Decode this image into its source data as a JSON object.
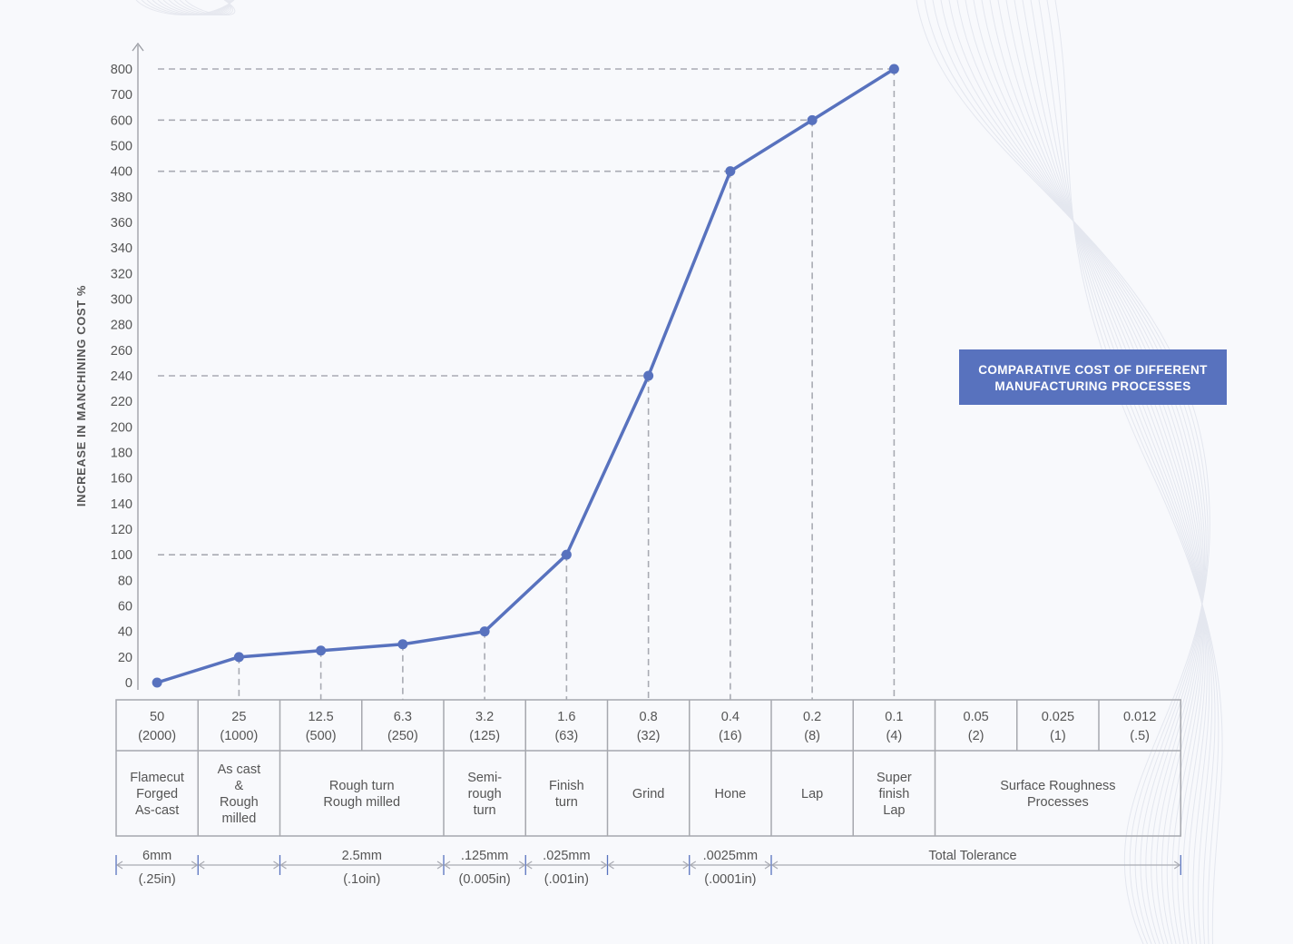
{
  "chart_data": {
    "type": "line",
    "ylabel": "INCREASE IN MANCHINING COST %",
    "y_ticks": [
      "800",
      "700",
      "600",
      "500",
      "400",
      "380",
      "360",
      "340",
      "320",
      "300",
      "280",
      "260",
      "240",
      "220",
      "200",
      "180",
      "160",
      "140",
      "120",
      "100",
      "80",
      "60",
      "40",
      "20",
      "0"
    ],
    "x": [
      "50 (2000)",
      "25 (1000)",
      "12.5 (500)",
      "6.3 (250)",
      "3.2 (125)",
      "1.6 (63)",
      "0.8 (32)",
      "0.4 (16)",
      "0.2 (8)",
      "0.1 (4)"
    ],
    "values": [
      0,
      20,
      25,
      30,
      40,
      100,
      240,
      400,
      600,
      800
    ],
    "legend_box": {
      "line1": "COMPARATIVE COST OF DIFFERENT",
      "line2": "MANUFACTURING PROCESSES"
    },
    "roughness_cols": [
      {
        "top": "50",
        "bottom": "(2000)"
      },
      {
        "top": "25",
        "bottom": "(1000)"
      },
      {
        "top": "12.5",
        "bottom": "(500)"
      },
      {
        "top": "6.3",
        "bottom": "(250)"
      },
      {
        "top": "3.2",
        "bottom": "(125)"
      },
      {
        "top": "1.6",
        "bottom": "(63)"
      },
      {
        "top": "0.8",
        "bottom": "(32)"
      },
      {
        "top": "0.4",
        "bottom": "(16)"
      },
      {
        "top": "0.2",
        "bottom": "(8)"
      },
      {
        "top": "0.1",
        "bottom": "(4)"
      },
      {
        "top": "0.05",
        "bottom": "(2)"
      },
      {
        "top": "0.025",
        "bottom": "(1)"
      },
      {
        "top": "0.012",
        "bottom": "(.5)"
      }
    ],
    "processes": [
      {
        "span": [
          0,
          1
        ],
        "lines": [
          "Flamecut",
          "Forged",
          "As-cast"
        ]
      },
      {
        "span": [
          1,
          2
        ],
        "lines": [
          "As cast",
          "&",
          "Rough",
          "milled"
        ]
      },
      {
        "span": [
          2,
          4
        ],
        "lines": [
          "Rough turn",
          "Rough milled"
        ]
      },
      {
        "span": [
          4,
          5
        ],
        "lines": [
          "Semi-",
          "rough",
          "turn"
        ]
      },
      {
        "span": [
          5,
          6
        ],
        "lines": [
          "Finish",
          "turn"
        ]
      },
      {
        "span": [
          6,
          7
        ],
        "lines": [
          "Grind"
        ]
      },
      {
        "span": [
          7,
          8
        ],
        "lines": [
          "Hone"
        ]
      },
      {
        "span": [
          8,
          9
        ],
        "lines": [
          "Lap"
        ]
      },
      {
        "span": [
          9,
          10
        ],
        "lines": [
          "Super",
          "finish",
          "Lap"
        ]
      },
      {
        "span": [
          10,
          13
        ],
        "lines": [
          "Surface Roughness",
          "Processes"
        ]
      }
    ],
    "tolerances": [
      {
        "span": [
          0,
          1
        ],
        "top": "6mm",
        "bottom": "(.25in)"
      },
      {
        "span": [
          1,
          2
        ],
        "top": "",
        "bottom": ""
      },
      {
        "span": [
          2,
          4
        ],
        "top": "2.5mm",
        "bottom": "(.1oin)"
      },
      {
        "span": [
          4,
          5
        ],
        "top": ".125mm",
        "bottom": "(0.005in)"
      },
      {
        "span": [
          5,
          6
        ],
        "top": ".025mm",
        "bottom": "(.001in)"
      },
      {
        "span": [
          6,
          7
        ],
        "top": "",
        "bottom": ""
      },
      {
        "span": [
          7,
          8
        ],
        "top": ".0025mm",
        "bottom": "(.0001in)"
      },
      {
        "span": [
          8,
          13
        ],
        "top": "Total Tolerance",
        "bottom": ""
      }
    ],
    "colors": {
      "line": "#5872be",
      "guides": "#a9abb3",
      "text": "#555555",
      "legend_fill": "#5872be",
      "table_border": "#a6a8ae"
    }
  }
}
